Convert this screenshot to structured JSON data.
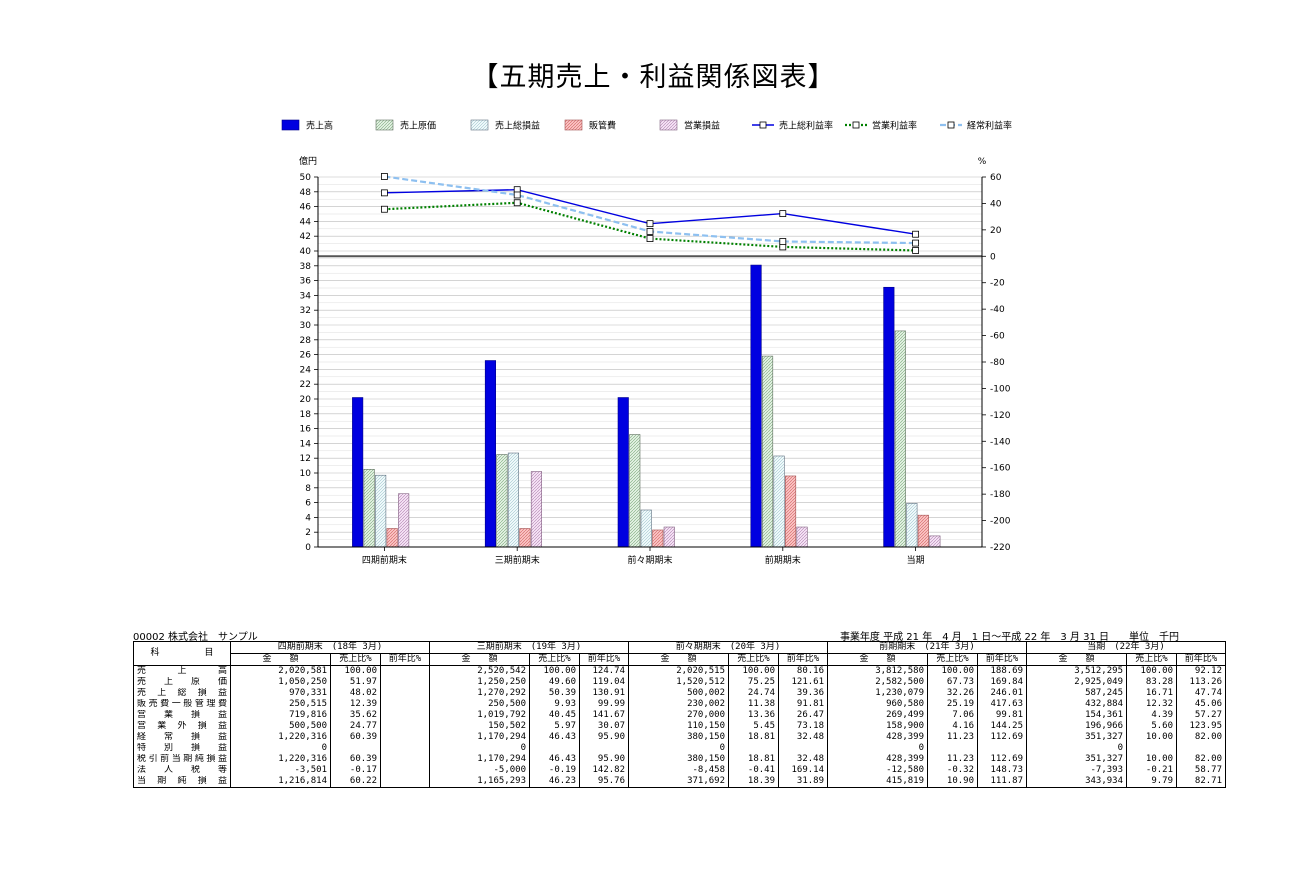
{
  "title": "【五期売上・利益関係図表】",
  "chart_data": {
    "type": "bar+line",
    "categories": [
      "四期前期末",
      "三期前期末",
      "前々期期末",
      "前期期末",
      "当期"
    ],
    "left_axis": {
      "label": "億円",
      "min": 0,
      "max": 50,
      "step": 2
    },
    "right_axis": {
      "label": "%",
      "min": -220,
      "max": 60,
      "step": 20
    },
    "bar_series": [
      {
        "name": "売上高",
        "color": "#0000e0",
        "pattern": "solid",
        "values": [
          20.2,
          25.2,
          20.2,
          38.1,
          35.1
        ]
      },
      {
        "name": "売上原価",
        "color": "#d8ecd8",
        "pattern": "hatch",
        "values": [
          10.5,
          12.5,
          15.2,
          25.8,
          29.2
        ]
      },
      {
        "name": "売上総損益",
        "color": "#e0f4f8",
        "pattern": "hatch",
        "values": [
          9.7,
          12.7,
          5.0,
          12.3,
          5.9
        ]
      },
      {
        "name": "販管費",
        "color": "#f8b0b0",
        "pattern": "hatch",
        "values": [
          2.5,
          2.5,
          2.3,
          9.6,
          4.3
        ]
      },
      {
        "name": "営業損益",
        "color": "#f0d8f0",
        "pattern": "hatch",
        "values": [
          7.2,
          10.2,
          2.7,
          2.7,
          1.5
        ]
      }
    ],
    "line_series": [
      {
        "name": "売上総利益率",
        "color": "#0000e0",
        "dash": "",
        "values": [
          48.0,
          50.4,
          24.7,
          32.3,
          16.7
        ]
      },
      {
        "name": "営業利益率",
        "color": "#008000",
        "dash": "2,2",
        "values": [
          35.6,
          40.5,
          13.4,
          7.1,
          4.4
        ]
      },
      {
        "name": "経常利益率",
        "color": "#8ec0f0",
        "dash": "6,3",
        "values": [
          60.4,
          46.4,
          18.8,
          11.2,
          10.0
        ]
      }
    ],
    "grid": true,
    "legend": "top"
  },
  "company": "00002 株式会社　サンプル",
  "fiscal_year": "事業年度 平成 21 年　4 月　1 日～平成 22 年　3 月 31 日　　単位　千円",
  "table": {
    "item_header": "科　　　　　目",
    "amount_header": "金　　額",
    "ratio_header": "売上比%",
    "yoy_header": "前年比%",
    "periods": [
      "四期前期末　(18年 3月)",
      "三期前期末　(19年 3月)",
      "前々期期末　(20年 3月)",
      "前期期末　(21年 3月)",
      "当期　(22年 3月)"
    ],
    "rows": [
      {
        "item": "売上高",
        "cells": [
          [
            "2,020,581",
            "100.00",
            ""
          ],
          [
            "2,520,542",
            "100.00",
            "124.74"
          ],
          [
            "2,020,515",
            "100.00",
            "80.16"
          ],
          [
            "3,812,580",
            "100.00",
            "188.69"
          ],
          [
            "3,512,295",
            "100.00",
            "92.12"
          ]
        ]
      },
      {
        "item": "売上原価",
        "cells": [
          [
            "1,050,250",
            "51.97",
            ""
          ],
          [
            "1,250,250",
            "49.60",
            "119.04"
          ],
          [
            "1,520,512",
            "75.25",
            "121.61"
          ],
          [
            "2,582,500",
            "67.73",
            "169.84"
          ],
          [
            "2,925,049",
            "83.28",
            "113.26"
          ]
        ]
      },
      {
        "item": "売上総損益",
        "cells": [
          [
            "970,331",
            "48.02",
            ""
          ],
          [
            "1,270,292",
            "50.39",
            "130.91"
          ],
          [
            "500,002",
            "24.74",
            "39.36"
          ],
          [
            "1,230,079",
            "32.26",
            "246.01"
          ],
          [
            "587,245",
            "16.71",
            "47.74"
          ]
        ]
      },
      {
        "item": "販売費一般管理費",
        "cells": [
          [
            "250,515",
            "12.39",
            ""
          ],
          [
            "250,500",
            "9.93",
            "99.99"
          ],
          [
            "230,002",
            "11.38",
            "91.81"
          ],
          [
            "960,580",
            "25.19",
            "417.63"
          ],
          [
            "432,884",
            "12.32",
            "45.06"
          ]
        ]
      },
      {
        "item": "営業損益",
        "cells": [
          [
            "719,816",
            "35.62",
            ""
          ],
          [
            "1,019,792",
            "40.45",
            "141.67"
          ],
          [
            "270,000",
            "13.36",
            "26.47"
          ],
          [
            "269,499",
            "7.06",
            "99.81"
          ],
          [
            "154,361",
            "4.39",
            "57.27"
          ]
        ]
      },
      {
        "item": "営業外損益",
        "cells": [
          [
            "500,500",
            "24.77",
            ""
          ],
          [
            "150,502",
            "5.97",
            "30.07"
          ],
          [
            "110,150",
            "5.45",
            "73.18"
          ],
          [
            "158,900",
            "4.16",
            "144.25"
          ],
          [
            "196,966",
            "5.60",
            "123.95"
          ]
        ]
      },
      {
        "item": "経常損益",
        "cells": [
          [
            "1,220,316",
            "60.39",
            ""
          ],
          [
            "1,170,294",
            "46.43",
            "95.90"
          ],
          [
            "380,150",
            "18.81",
            "32.48"
          ],
          [
            "428,399",
            "11.23",
            "112.69"
          ],
          [
            "351,327",
            "10.00",
            "82.00"
          ]
        ]
      },
      {
        "item": "特別損益",
        "cells": [
          [
            "0",
            "",
            ""
          ],
          [
            "0",
            "",
            ""
          ],
          [
            "0",
            "",
            ""
          ],
          [
            "0",
            "",
            ""
          ],
          [
            "0",
            "",
            ""
          ]
        ]
      },
      {
        "item": "税引前当期純損益",
        "cells": [
          [
            "1,220,316",
            "60.39",
            ""
          ],
          [
            "1,170,294",
            "46.43",
            "95.90"
          ],
          [
            "380,150",
            "18.81",
            "32.48"
          ],
          [
            "428,399",
            "11.23",
            "112.69"
          ],
          [
            "351,327",
            "10.00",
            "82.00"
          ]
        ]
      },
      {
        "item": "法人税等",
        "cells": [
          [
            "-3,501",
            "-0.17",
            ""
          ],
          [
            "-5,000",
            "-0.19",
            "142.82"
          ],
          [
            "-8,458",
            "-0.41",
            "169.14"
          ],
          [
            "-12,580",
            "-0.32",
            "148.73"
          ],
          [
            "-7,393",
            "-0.21",
            "58.77"
          ]
        ]
      },
      {
        "item": "当期純損益",
        "cells": [
          [
            "1,216,814",
            "60.22",
            ""
          ],
          [
            "1,165,293",
            "46.23",
            "95.76"
          ],
          [
            "371,692",
            "18.39",
            "31.89"
          ],
          [
            "415,819",
            "10.90",
            "111.87"
          ],
          [
            "343,934",
            "9.79",
            "82.71"
          ]
        ]
      }
    ]
  }
}
